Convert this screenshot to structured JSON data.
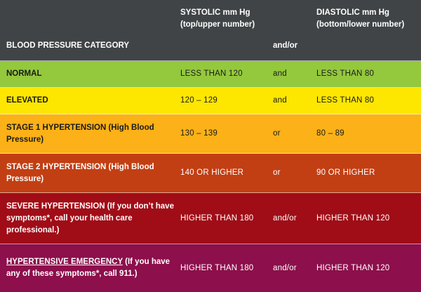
{
  "header": {
    "category": "BLOOD PRESSURE CATEGORY",
    "systolic": "SYSTOLIC mm Hg (top/upper number)",
    "andor": "and/or",
    "diastolic": "DIASTOLIC mm Hg (bottom/lower number)"
  },
  "rows": [
    {
      "category": "NORMAL",
      "category_rest": "",
      "systolic": "LESS THAN 120",
      "conj": "and",
      "diastolic": "LESS THAN 80",
      "color": "#94c83d"
    },
    {
      "category": "ELEVATED",
      "category_rest": "",
      "systolic": "120 – 129",
      "conj": "and",
      "diastolic": "LESS THAN 80",
      "color": "#fde600"
    },
    {
      "category": "STAGE 1 HYPERTENSION (High Blood Pressure)",
      "category_rest": "",
      "systolic": "130 – 139",
      "conj": "or",
      "diastolic": "80 – 89",
      "color": "#fbb117"
    },
    {
      "category": "STAGE 2 HYPERTENSION (High Blood Pressure)",
      "category_rest": "",
      "systolic": "140 OR HIGHER",
      "conj": "or",
      "diastolic": "90 OR HIGHER",
      "color": "#c23f13"
    },
    {
      "category": "SEVERE HYPERTENSION (If you don’t have symptoms*, call your health care professional.)",
      "category_rest": "",
      "systolic": "HIGHER THAN 180",
      "conj": "and/or",
      "diastolic": "HIGHER THAN 120",
      "color": "#a00d17"
    },
    {
      "category": "HYPERTENSIVE EMERGENCY",
      "category_rest": " (If you have any of these symptoms*, call 911.)",
      "systolic": "HIGHER THAN 180",
      "conj": "and/or",
      "diastolic": "HIGHER THAN 120",
      "color": "#8d0f4c"
    }
  ]
}
